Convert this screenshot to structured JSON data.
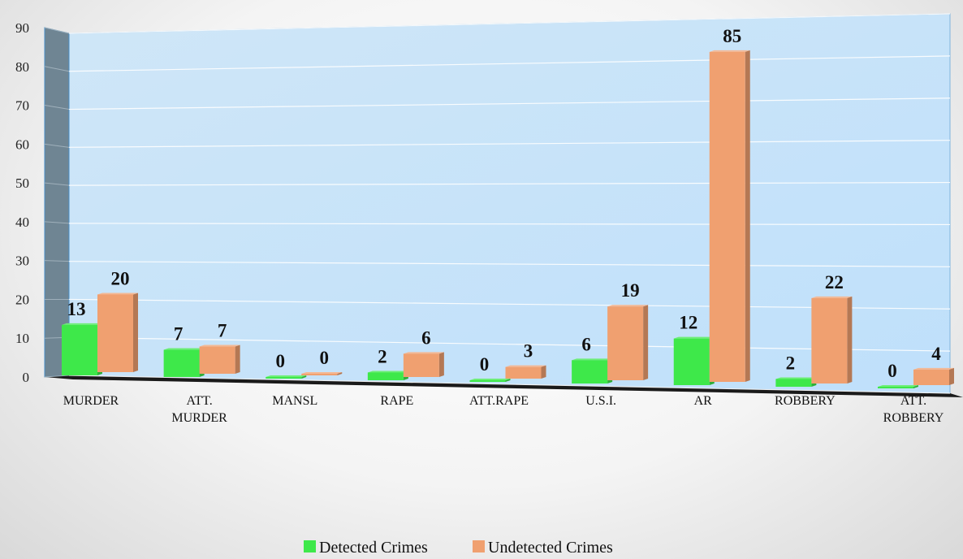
{
  "chart_data": {
    "type": "bar",
    "categories": [
      [
        "MURDER"
      ],
      [
        "ATT.",
        "MURDER"
      ],
      [
        "MANSL"
      ],
      [
        "RAPE"
      ],
      [
        "ATT.RAPE"
      ],
      [
        "U.S.I."
      ],
      [
        "AR"
      ],
      [
        "ROBBERY"
      ],
      [
        "ATT.",
        "ROBBERY"
      ]
    ],
    "series": [
      {
        "name": "Detected Crimes",
        "values": [
          13,
          7,
          0,
          2,
          0,
          6,
          12,
          2,
          0
        ],
        "color": "#3ee84a"
      },
      {
        "name": "Undetected Crimes",
        "values": [
          20,
          7,
          0,
          6,
          3,
          19,
          85,
          22,
          4
        ],
        "color": "#f0a070"
      }
    ],
    "yticks": [
      0,
      10,
      20,
      30,
      40,
      50,
      60,
      70,
      80,
      90
    ],
    "ylim": [
      0,
      90
    ],
    "grid": true,
    "legend_position": "bottom",
    "style": "3d-clustered-column"
  }
}
